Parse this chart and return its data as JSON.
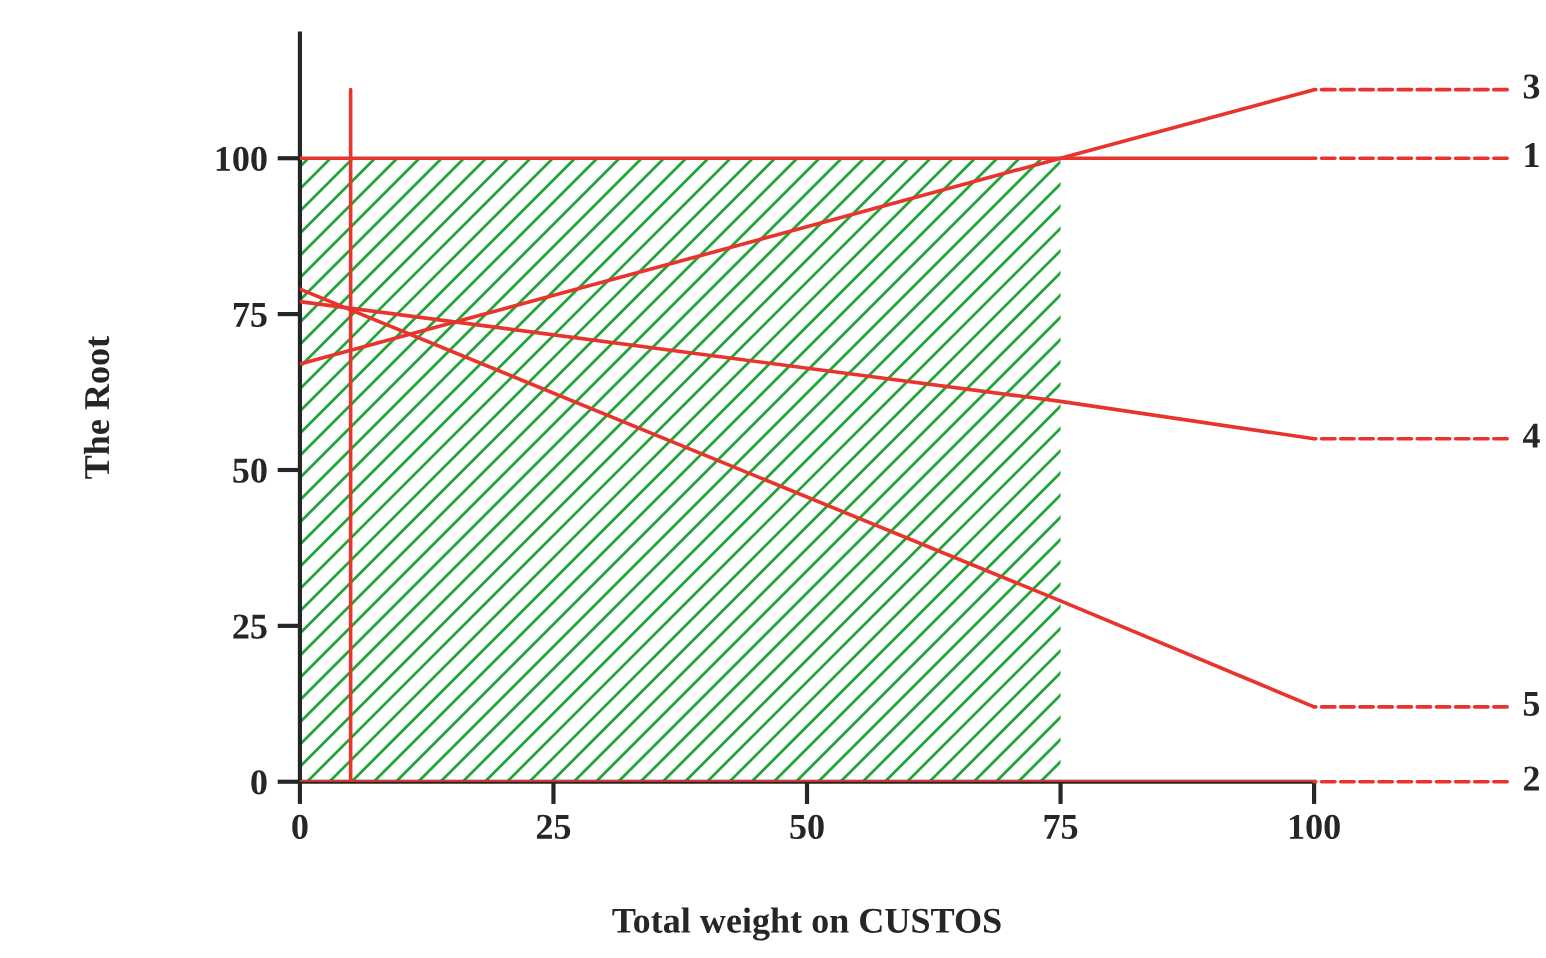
{
  "chart_data": {
    "type": "line",
    "xlabel": "Total weight on CUSTOS",
    "ylabel": "The Root",
    "xlim": [
      0,
      100
    ],
    "xticks": [
      0,
      25,
      50,
      75,
      100
    ],
    "ylim": [
      0,
      120
    ],
    "yticks": [
      0,
      25,
      50,
      75,
      100
    ],
    "grid": false,
    "legend": false,
    "series": [
      {
        "type": "area",
        "color": "#22a63a",
        "x": [
          0,
          75
        ],
        "values": [
          100,
          100
        ]
      },
      {
        "name": "1",
        "color": "#e8342c",
        "x": [
          0,
          75,
          100
        ],
        "values": [
          100,
          100,
          100
        ]
      },
      {
        "name": "3",
        "color": "#e8342c",
        "x": [
          0,
          75,
          100
        ],
        "values": [
          67,
          100,
          111
        ]
      },
      {
        "name": "4",
        "color": "#e8342c",
        "x": [
          0,
          75,
          100
        ],
        "values": [
          77,
          61,
          55
        ]
      },
      {
        "name": "5",
        "color": "#e8342c",
        "x": [
          0,
          75,
          100
        ],
        "values": [
          79,
          29,
          12
        ]
      },
      {
        "name": "2",
        "color": "#e8342c",
        "x": [
          0,
          100
        ],
        "values": [
          0,
          0
        ]
      },
      {
        "color": "#e8342c",
        "x": [
          5,
          5
        ],
        "values": [
          0,
          111
        ]
      }
    ]
  }
}
